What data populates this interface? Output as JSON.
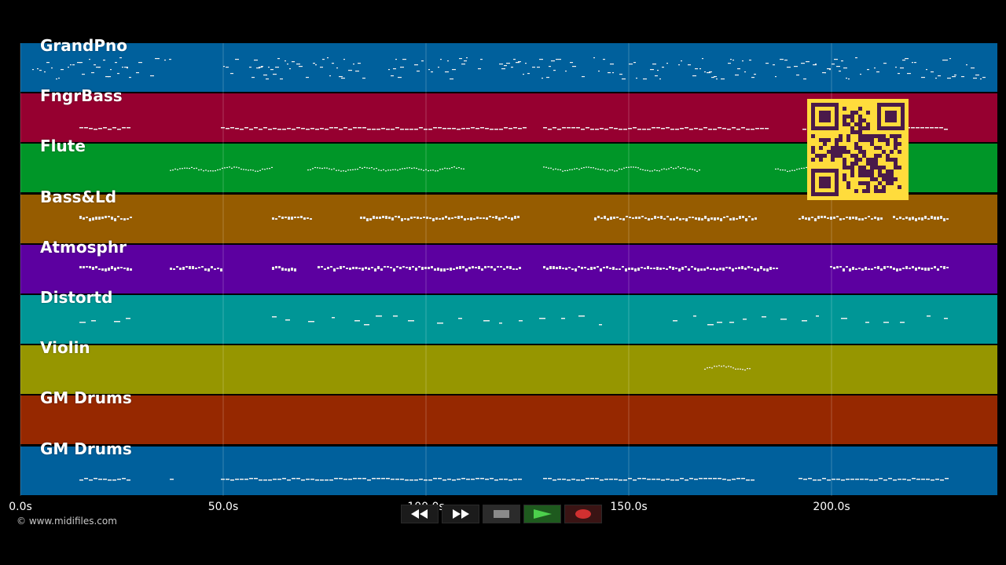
{
  "tracks": [
    {
      "name": "GrandPno",
      "color": "#00609c"
    },
    {
      "name": "FngrBass",
      "color": "#960030"
    },
    {
      "name": "Flute",
      "color": "#009628"
    },
    {
      "name": "Bass&Ld",
      "color": "#965c00"
    },
    {
      "name": "Atmosphr",
      "color": "#5c00a0"
    },
    {
      "name": "Distortd",
      "color": "#009696"
    },
    {
      "name": "Violin",
      "color": "#969600"
    },
    {
      "name": "GM Drums",
      "color": "#962800"
    },
    {
      "name": "GM Drums",
      "color": "#00609c"
    }
  ],
  "timeline": {
    "ticks": [
      "0.0s",
      "50.0s",
      "100.0s",
      "150.0s",
      "200.0s"
    ]
  },
  "credit": "© www.midifiles.com",
  "transport": {
    "buttons": [
      {
        "name": "rewind-button",
        "icon": "rewind-icon"
      },
      {
        "name": "fast-forward-button",
        "icon": "fast-forward-icon"
      },
      {
        "name": "stop-button",
        "icon": "stop-icon"
      },
      {
        "name": "play-button",
        "icon": "play-icon"
      },
      {
        "name": "record-button",
        "icon": "record-icon"
      }
    ]
  },
  "qr": {
    "color": "#ffdc3c",
    "module_color": "#4a1a4a"
  }
}
